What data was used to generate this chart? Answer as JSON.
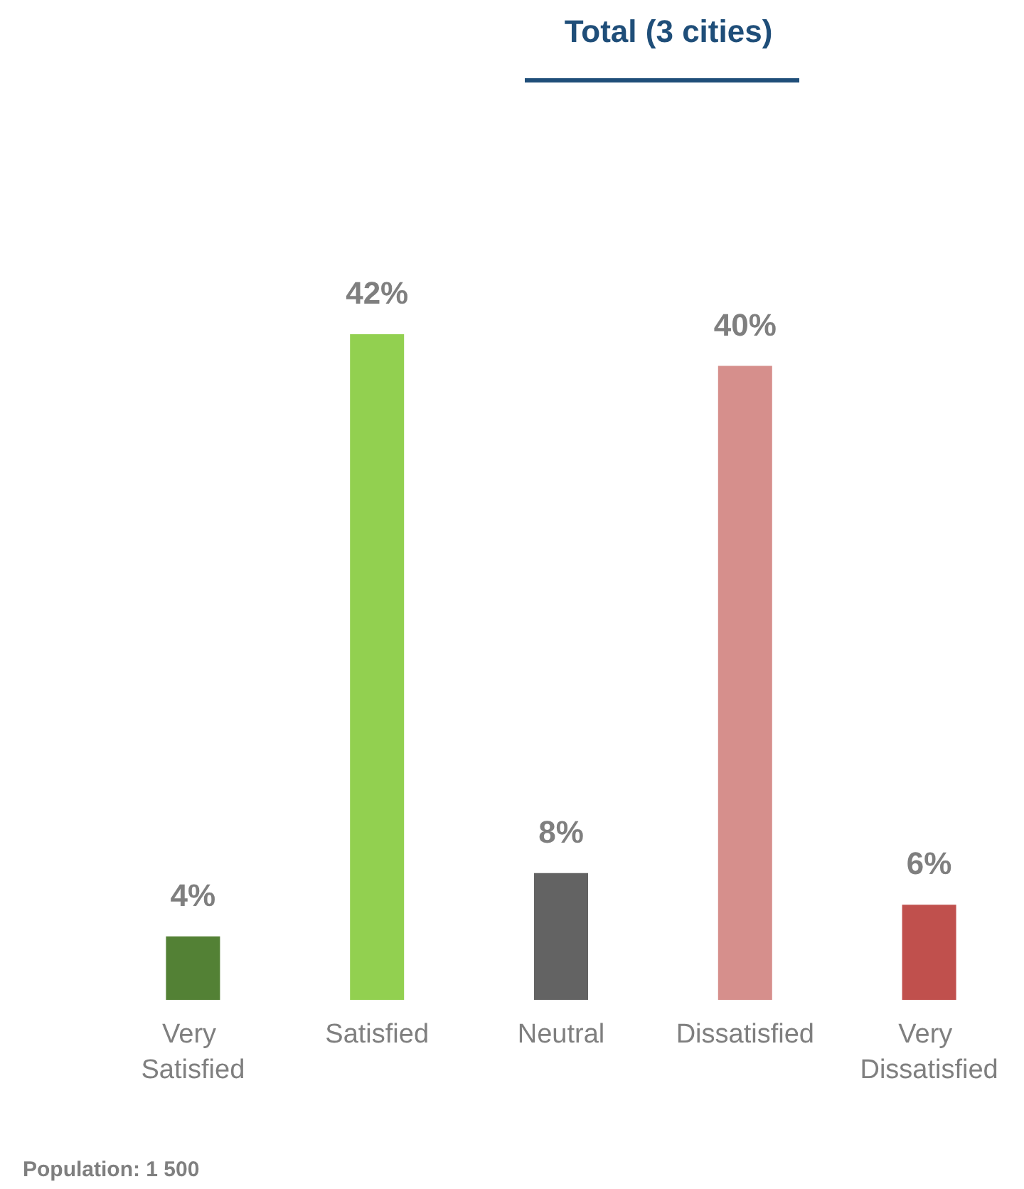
{
  "chart_data": {
    "type": "bar",
    "title": "Total (3 cities)",
    "categories": [
      "Very Satisfied",
      "Satisfied",
      "Neutral",
      "Dissatisfied",
      "Very Dissatisfied"
    ],
    "values": [
      4,
      42,
      8,
      40,
      6
    ],
    "colors": [
      "#538135",
      "#92d050",
      "#636363",
      "#d68f8c",
      "#c0504d"
    ],
    "value_labels": [
      "4%",
      "42%",
      "8%",
      "40%",
      "6%"
    ],
    "annotations": [
      "Population: 1 500"
    ]
  }
}
